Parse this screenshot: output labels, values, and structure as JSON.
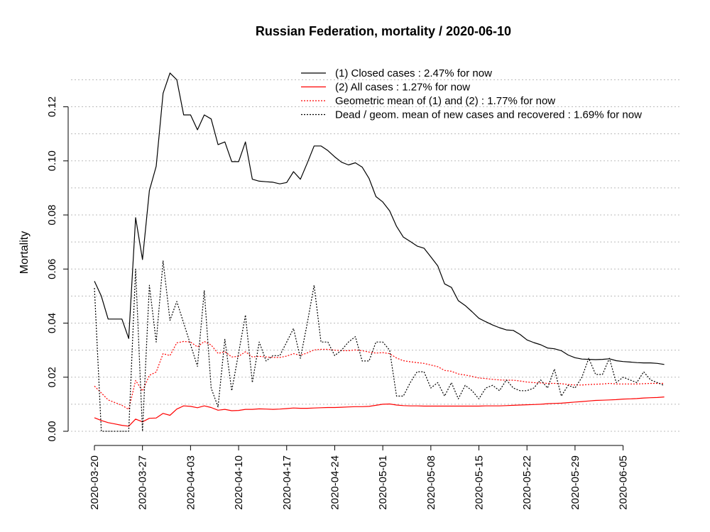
{
  "chart_data": {
    "type": "line",
    "title": "Russian Federation, mortality /  2020-06-10",
    "xlabel": "",
    "ylabel": "Mortality",
    "xlim": [
      "2020-03-20",
      "2020-06-09"
    ],
    "ylim": [
      0,
      0.13
    ],
    "grid": "horizontal-dotted",
    "legend_position": "top-right",
    "y_ticks": [
      "0.00",
      "0.02",
      "0.04",
      "0.06",
      "0.08",
      "0.10",
      "0.12"
    ],
    "x_ticks": [
      "2020-03-20",
      "2020-03-27",
      "2020-04-03",
      "2020-04-10",
      "2020-04-17",
      "2020-04-24",
      "2020-05-01",
      "2020-05-08",
      "2020-05-15",
      "2020-05-22",
      "2020-05-29",
      "2020-06-05"
    ],
    "dates_start": "2020-03-20",
    "series": [
      {
        "name": "(1) Closed cases : 2.47% for now",
        "color": "#000000",
        "dash": "solid",
        "values": [
          0.0555,
          0.05,
          0.0415,
          0.0415,
          0.0415,
          0.0343,
          0.079,
          0.0635,
          0.089,
          0.098,
          0.125,
          0.1325,
          0.13,
          0.117,
          0.117,
          0.1115,
          0.117,
          0.1155,
          0.106,
          0.107,
          0.0997,
          0.0997,
          0.107,
          0.0932,
          0.0925,
          0.0923,
          0.0921,
          0.0915,
          0.092,
          0.096,
          0.0932,
          0.0992,
          0.1055,
          0.1055,
          0.1038,
          0.1015,
          0.0995,
          0.0985,
          0.0993,
          0.0977,
          0.0935,
          0.0868,
          0.0848,
          0.0815,
          0.0758,
          0.0718,
          0.0702,
          0.0685,
          0.0677,
          0.0645,
          0.0612,
          0.0545,
          0.0532,
          0.0483,
          0.0465,
          0.0442,
          0.0418,
          0.0405,
          0.0393,
          0.0383,
          0.0375,
          0.0373,
          0.0358,
          0.0338,
          0.0328,
          0.032,
          0.0308,
          0.0305,
          0.0298,
          0.0282,
          0.0272,
          0.0267,
          0.0266,
          0.0265,
          0.0266,
          0.0268,
          0.0261,
          0.0258,
          0.0256,
          0.0254,
          0.0253,
          0.0253,
          0.0251,
          0.0247
        ]
      },
      {
        "name": "(2) All cases : 1.27% for now",
        "color": "#ff0000",
        "dash": "solid",
        "values": [
          0.005,
          0.004,
          0.0032,
          0.0027,
          0.0022,
          0.0019,
          0.0045,
          0.0035,
          0.0048,
          0.0049,
          0.0066,
          0.0059,
          0.0082,
          0.0094,
          0.0092,
          0.0087,
          0.0094,
          0.0088,
          0.0078,
          0.0081,
          0.0076,
          0.0077,
          0.0081,
          0.0081,
          0.0083,
          0.0082,
          0.0081,
          0.0082,
          0.0084,
          0.0086,
          0.0085,
          0.0085,
          0.0086,
          0.0087,
          0.0088,
          0.0088,
          0.0089,
          0.009,
          0.0091,
          0.0091,
          0.0092,
          0.0096,
          0.01,
          0.0101,
          0.0097,
          0.0095,
          0.0094,
          0.0094,
          0.0093,
          0.0093,
          0.0093,
          0.0093,
          0.0093,
          0.0093,
          0.0093,
          0.0093,
          0.0093,
          0.0094,
          0.0094,
          0.0094,
          0.0095,
          0.0096,
          0.0097,
          0.0098,
          0.0099,
          0.01,
          0.0102,
          0.0103,
          0.0104,
          0.0106,
          0.0108,
          0.011,
          0.0112,
          0.0114,
          0.0115,
          0.0116,
          0.0117,
          0.0119,
          0.012,
          0.0121,
          0.0123,
          0.0124,
          0.0125,
          0.0127
        ]
      },
      {
        "name": "Geometric mean of (1) and (2) : 1.77% for now",
        "color": "#ff0000",
        "dash": "dotted",
        "values": [
          0.0167,
          0.0142,
          0.0116,
          0.0106,
          0.0096,
          0.0081,
          0.0188,
          0.0149,
          0.0207,
          0.0219,
          0.0287,
          0.028,
          0.0327,
          0.0332,
          0.033,
          0.0312,
          0.0332,
          0.0319,
          0.0288,
          0.0294,
          0.0275,
          0.0277,
          0.0294,
          0.0275,
          0.0277,
          0.0275,
          0.0273,
          0.0273,
          0.0278,
          0.0287,
          0.0281,
          0.029,
          0.0301,
          0.0303,
          0.0303,
          0.03,
          0.0298,
          0.0298,
          0.0301,
          0.0298,
          0.0293,
          0.0289,
          0.0291,
          0.0287,
          0.0271,
          0.0261,
          0.0257,
          0.0254,
          0.0251,
          0.0245,
          0.0239,
          0.0225,
          0.0222,
          0.0212,
          0.0208,
          0.0203,
          0.0197,
          0.0195,
          0.0192,
          0.019,
          0.0189,
          0.0189,
          0.0186,
          0.0182,
          0.018,
          0.0179,
          0.0177,
          0.0177,
          0.0176,
          0.0173,
          0.0171,
          0.0171,
          0.0173,
          0.0174,
          0.0175,
          0.0177,
          0.0175,
          0.0175,
          0.0175,
          0.0175,
          0.0176,
          0.0177,
          0.0177,
          0.0177
        ]
      },
      {
        "name": "Dead / geom. mean of new cases and recovered : 1.69% for now",
        "color": "#000000",
        "dash": "dotted",
        "values": [
          0.053,
          0.0,
          0.0,
          0.0,
          0.0,
          0.0,
          0.06,
          0.0,
          0.054,
          0.033,
          0.063,
          0.041,
          0.048,
          0.04,
          0.032,
          0.024,
          0.052,
          0.016,
          0.009,
          0.034,
          0.015,
          0.029,
          0.043,
          0.018,
          0.033,
          0.026,
          0.028,
          0.028,
          0.033,
          0.038,
          0.027,
          0.04,
          0.054,
          0.033,
          0.033,
          0.028,
          0.03,
          0.033,
          0.035,
          0.026,
          0.026,
          0.033,
          0.033,
          0.03,
          0.013,
          0.013,
          0.018,
          0.022,
          0.022,
          0.016,
          0.018,
          0.013,
          0.018,
          0.012,
          0.017,
          0.015,
          0.012,
          0.016,
          0.017,
          0.015,
          0.019,
          0.016,
          0.015,
          0.015,
          0.016,
          0.019,
          0.016,
          0.023,
          0.013,
          0.017,
          0.016,
          0.02,
          0.027,
          0.021,
          0.021,
          0.027,
          0.018,
          0.02,
          0.019,
          0.018,
          0.022,
          0.019,
          0.018,
          0.0169
        ]
      }
    ]
  }
}
